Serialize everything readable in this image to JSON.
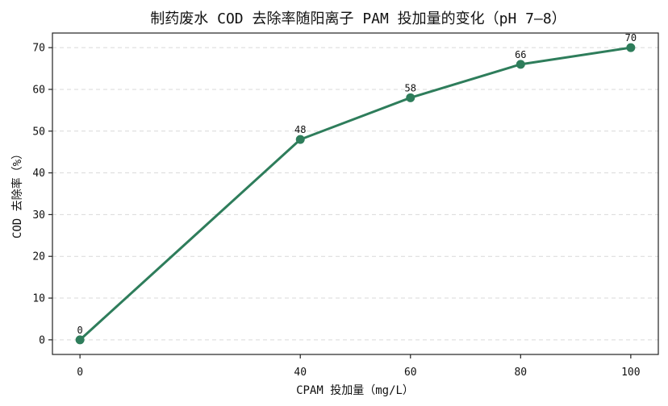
{
  "chart_data": {
    "type": "line",
    "title": "制药废水 COD 去除率随阳离子 PAM 投加量的变化（pH 7–8）",
    "xlabel": "CPAM 投加量（mg/L）",
    "ylabel": "COD 去除率（%）",
    "x": [
      0,
      40,
      60,
      80,
      100
    ],
    "series": [
      {
        "values": [
          0,
          48,
          58,
          66,
          70
        ],
        "color": "#2e7d5b"
      }
    ],
    "data_labels": [
      "0",
      "48",
      "58",
      "66",
      "70"
    ],
    "xticks": [
      0,
      40,
      60,
      80,
      100
    ],
    "yticks": [
      0,
      10,
      20,
      30,
      40,
      50,
      60,
      70
    ],
    "xlim": [
      -5,
      105
    ],
    "ylim": [
      -3.5,
      73.5
    ],
    "grid": "y-dashed",
    "legend": "none"
  }
}
